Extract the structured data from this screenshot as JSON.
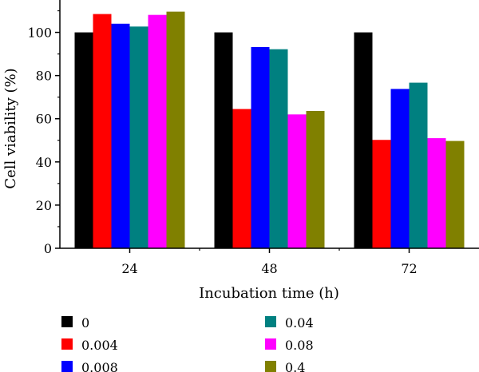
{
  "chart_data": {
    "type": "bar",
    "title": "",
    "xlabel": "Incubation time (h)",
    "ylabel": "Cell viability (%)",
    "categories": [
      "24",
      "48",
      "72"
    ],
    "ylim": [
      0,
      115
    ],
    "yticks": [
      0,
      20,
      40,
      60,
      80,
      100
    ],
    "grid": false,
    "legend_position": "bottom",
    "series": [
      {
        "name": "0",
        "color": "#000000",
        "values": [
          100,
          100,
          100
        ]
      },
      {
        "name": "0.004",
        "color": "#ff0000",
        "values": [
          108.5,
          64.5,
          50.2
        ]
      },
      {
        "name": "0.008",
        "color": "#0000ff",
        "values": [
          104,
          93.2,
          73.8
        ]
      },
      {
        "name": "0.04",
        "color": "#008080",
        "values": [
          102.7,
          92.2,
          76.7
        ]
      },
      {
        "name": "0.08",
        "color": "#ff00ff",
        "values": [
          108.1,
          62,
          51
        ]
      },
      {
        "name": "0.4",
        "color": "#808000",
        "values": [
          109.6,
          63.6,
          49.7
        ]
      }
    ]
  }
}
